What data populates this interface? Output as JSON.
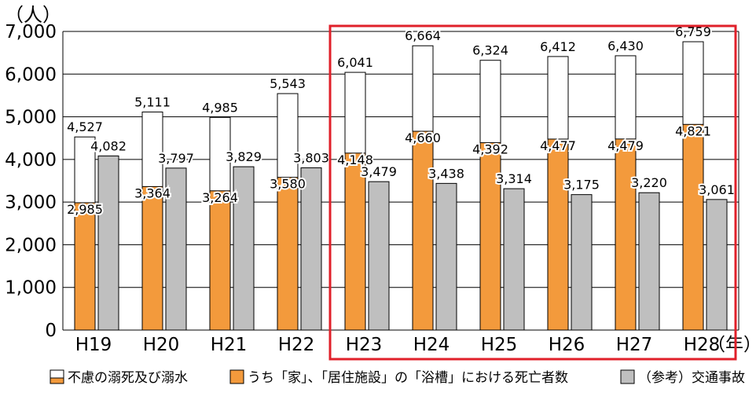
{
  "chart_data": {
    "type": "bar",
    "ylabel": "（人）",
    "xlabel": "（年）",
    "ylim": [
      0,
      7000
    ],
    "yticks": [
      "0",
      "1,000",
      "2,000",
      "3,000",
      "4,000",
      "5,000",
      "6,000",
      "7,000"
    ],
    "categories": [
      "H19",
      "H20",
      "H21",
      "H22",
      "H23",
      "H24",
      "H25",
      "H26",
      "H27",
      "H28"
    ],
    "series": [
      {
        "name": "不慮の溺死及び溺水",
        "values": [
          4527,
          5111,
          4985,
          5543,
          6041,
          6664,
          6324,
          6412,
          6430,
          6759
        ],
        "labels": [
          "4,527",
          "5,111",
          "4,985",
          "5,543",
          "6,041",
          "6,664",
          "6,324",
          "6,412",
          "6,430",
          "6,759"
        ],
        "color": "#ffffff"
      },
      {
        "name": "うち「家」、「居住施設」の「浴槽」における死亡者数",
        "values": [
          2985,
          3364,
          3264,
          3580,
          4148,
          4660,
          4392,
          4477,
          4479,
          4821
        ],
        "labels": [
          "2,985",
          "3,364",
          "3,264",
          "3,580",
          "4,148",
          "4,660",
          "4,392",
          "4,477",
          "4,479",
          "4,821"
        ],
        "color": "#f39a3c"
      },
      {
        "name": "（参考）交通事故",
        "values": [
          4082,
          3797,
          3829,
          3803,
          3479,
          3438,
          3314,
          3175,
          3220,
          3061
        ],
        "labels": [
          "4,082",
          "3,797",
          "3,829",
          "3,803",
          "3,479",
          "3,438",
          "3,314",
          "3,175",
          "3,220",
          "3,061"
        ],
        "color": "#bfbfbf"
      }
    ],
    "highlight": {
      "from": "H23",
      "to": "H28",
      "color": "#e0202a"
    },
    "grid": true,
    "legend_position": "bottom"
  }
}
